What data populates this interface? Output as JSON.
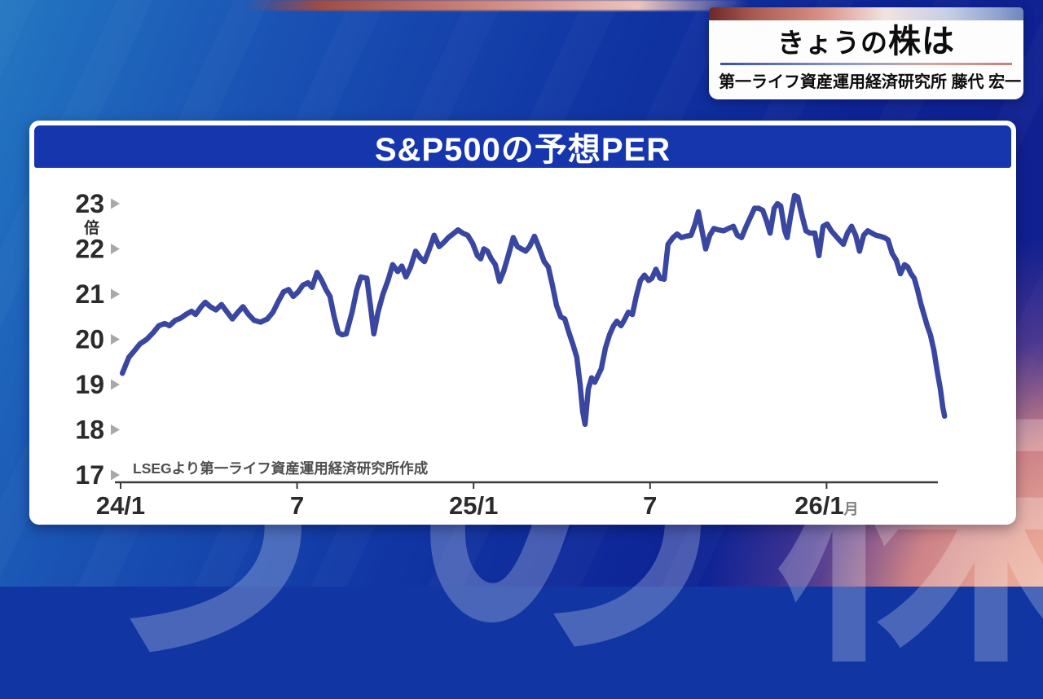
{
  "badge": {
    "title_leading": "きょうの",
    "title_emphasis": "株は",
    "subtitle": "第一ライフ資産運用経済研究所  藤代 宏一"
  },
  "card": {
    "title": "S&P500の予想PER"
  },
  "background": {
    "watermark": "うの株"
  },
  "colors": {
    "header_blue": "#1636ad",
    "line_blue": "#3a47a0",
    "axis": "#3a3a3a",
    "tick_triangle": "#a8a8a8",
    "label_text": "#2b2b2b",
    "source_text": "#4f4f4f",
    "bg_blue_light": "#2377c2",
    "bg_blue_dark": "#121d8c",
    "bg_salmon": "#e8a594"
  },
  "chart_data": {
    "type": "line",
    "title": "S&P500の予想PER",
    "unit_label": "倍",
    "source_note": "LSEGより第一ライフ資産運用経済研究所作成",
    "xlabel": "",
    "ylabel": "予想PER(倍)",
    "ylim": [
      17,
      23
    ],
    "grid": false,
    "legend": "none",
    "y_ticks": [
      23,
      22,
      21,
      20,
      19,
      18,
      17
    ],
    "x_unit": "months since 2024-01 (0 = 24/1)",
    "x_ticks": [
      {
        "m": 0,
        "label": "24/1"
      },
      {
        "m": 6,
        "label": "7"
      },
      {
        "m": 12,
        "label": "25/1"
      },
      {
        "m": 18,
        "label": "7"
      },
      {
        "m": 24,
        "label": "26/1",
        "suffix": "月"
      }
    ],
    "series": [
      {
        "name": "S&P500 予想PER",
        "color": "#3a47a0",
        "points": [
          [
            0.06,
            19.25
          ],
          [
            0.28,
            19.6
          ],
          [
            0.47,
            19.75
          ],
          [
            0.66,
            19.9
          ],
          [
            0.89,
            20.0
          ],
          [
            1.11,
            20.15
          ],
          [
            1.3,
            20.3
          ],
          [
            1.5,
            20.35
          ],
          [
            1.66,
            20.3
          ],
          [
            1.86,
            20.42
          ],
          [
            2.05,
            20.47
          ],
          [
            2.22,
            20.55
          ],
          [
            2.41,
            20.62
          ],
          [
            2.55,
            20.55
          ],
          [
            2.74,
            20.72
          ],
          [
            2.88,
            20.82
          ],
          [
            3.05,
            20.72
          ],
          [
            3.24,
            20.65
          ],
          [
            3.43,
            20.77
          ],
          [
            3.6,
            20.62
          ],
          [
            3.8,
            20.45
          ],
          [
            3.99,
            20.6
          ],
          [
            4.16,
            20.72
          ],
          [
            4.35,
            20.55
          ],
          [
            4.54,
            20.42
          ],
          [
            4.76,
            20.38
          ],
          [
            4.99,
            20.45
          ],
          [
            5.18,
            20.6
          ],
          [
            5.37,
            20.85
          ],
          [
            5.54,
            21.05
          ],
          [
            5.71,
            21.1
          ],
          [
            5.87,
            20.95
          ],
          [
            6.04,
            21.05
          ],
          [
            6.2,
            21.2
          ],
          [
            6.37,
            21.25
          ],
          [
            6.51,
            21.15
          ],
          [
            6.68,
            21.48
          ],
          [
            6.84,
            21.3
          ],
          [
            6.98,
            21.1
          ],
          [
            7.12,
            20.95
          ],
          [
            7.26,
            20.5
          ],
          [
            7.4,
            20.15
          ],
          [
            7.53,
            20.1
          ],
          [
            7.67,
            20.12
          ],
          [
            7.87,
            20.6
          ],
          [
            8.03,
            21.1
          ],
          [
            8.17,
            21.38
          ],
          [
            8.37,
            21.35
          ],
          [
            8.5,
            20.7
          ],
          [
            8.61,
            20.12
          ],
          [
            8.75,
            20.6
          ],
          [
            8.92,
            21.0
          ],
          [
            9.09,
            21.3
          ],
          [
            9.25,
            21.65
          ],
          [
            9.42,
            21.5
          ],
          [
            9.56,
            21.62
          ],
          [
            9.7,
            21.38
          ],
          [
            9.86,
            21.6
          ],
          [
            10.03,
            21.95
          ],
          [
            10.19,
            21.8
          ],
          [
            10.33,
            21.72
          ],
          [
            10.5,
            22.0
          ],
          [
            10.66,
            22.3
          ],
          [
            10.83,
            22.05
          ],
          [
            11.0,
            22.15
          ],
          [
            11.14,
            22.25
          ],
          [
            11.3,
            22.33
          ],
          [
            11.47,
            22.42
          ],
          [
            11.63,
            22.35
          ],
          [
            11.8,
            22.3
          ],
          [
            11.97,
            22.12
          ],
          [
            12.13,
            21.85
          ],
          [
            12.24,
            21.78
          ],
          [
            12.35,
            22.0
          ],
          [
            12.47,
            21.95
          ],
          [
            12.6,
            21.78
          ],
          [
            12.74,
            21.65
          ],
          [
            12.88,
            21.28
          ],
          [
            13.02,
            21.5
          ],
          [
            13.19,
            21.88
          ],
          [
            13.35,
            22.25
          ],
          [
            13.49,
            22.05
          ],
          [
            13.63,
            22.0
          ],
          [
            13.77,
            21.95
          ],
          [
            13.9,
            22.05
          ],
          [
            14.07,
            22.28
          ],
          [
            14.24,
            22.0
          ],
          [
            14.4,
            21.72
          ],
          [
            14.54,
            21.6
          ],
          [
            14.68,
            21.2
          ],
          [
            14.82,
            20.75
          ],
          [
            14.96,
            20.5
          ],
          [
            15.1,
            20.45
          ],
          [
            15.24,
            20.15
          ],
          [
            15.37,
            19.9
          ],
          [
            15.51,
            19.6
          ],
          [
            15.62,
            19.0
          ],
          [
            15.71,
            18.4
          ],
          [
            15.79,
            18.12
          ],
          [
            15.9,
            18.9
          ],
          [
            16.01,
            19.15
          ],
          [
            16.12,
            19.05
          ],
          [
            16.23,
            19.2
          ],
          [
            16.34,
            19.35
          ],
          [
            16.48,
            19.8
          ],
          [
            16.62,
            20.1
          ],
          [
            16.76,
            20.3
          ],
          [
            16.87,
            20.4
          ],
          [
            17.01,
            20.3
          ],
          [
            17.12,
            20.42
          ],
          [
            17.26,
            20.6
          ],
          [
            17.4,
            20.55
          ],
          [
            17.53,
            20.95
          ],
          [
            17.67,
            21.3
          ],
          [
            17.81,
            21.42
          ],
          [
            17.95,
            21.3
          ],
          [
            18.06,
            21.35
          ],
          [
            18.2,
            21.55
          ],
          [
            18.34,
            21.35
          ],
          [
            18.48,
            21.33
          ],
          [
            18.61,
            22.1
          ],
          [
            18.78,
            22.25
          ],
          [
            18.92,
            22.33
          ],
          [
            19.06,
            22.25
          ],
          [
            19.22,
            22.28
          ],
          [
            19.39,
            22.3
          ],
          [
            19.53,
            22.55
          ],
          [
            19.64,
            22.82
          ],
          [
            19.78,
            22.35
          ],
          [
            19.89,
            22.0
          ],
          [
            20.03,
            22.3
          ],
          [
            20.17,
            22.45
          ],
          [
            20.33,
            22.42
          ],
          [
            20.5,
            22.4
          ],
          [
            20.66,
            22.45
          ],
          [
            20.83,
            22.5
          ],
          [
            20.97,
            22.3
          ],
          [
            21.11,
            22.25
          ],
          [
            21.27,
            22.5
          ],
          [
            21.41,
            22.7
          ],
          [
            21.55,
            22.9
          ],
          [
            21.69,
            22.9
          ],
          [
            21.83,
            22.85
          ],
          [
            21.97,
            22.6
          ],
          [
            22.08,
            22.35
          ],
          [
            22.22,
            22.9
          ],
          [
            22.33,
            23.0
          ],
          [
            22.44,
            22.95
          ],
          [
            22.58,
            22.4
          ],
          [
            22.66,
            22.25
          ],
          [
            22.77,
            22.7
          ],
          [
            22.91,
            23.18
          ],
          [
            23.02,
            23.15
          ],
          [
            23.16,
            22.75
          ],
          [
            23.3,
            22.4
          ],
          [
            23.43,
            22.35
          ],
          [
            23.6,
            22.35
          ],
          [
            23.74,
            21.85
          ],
          [
            23.88,
            22.5
          ],
          [
            24.02,
            22.55
          ],
          [
            24.16,
            22.4
          ],
          [
            24.29,
            22.3
          ],
          [
            24.43,
            22.2
          ],
          [
            24.57,
            22.1
          ],
          [
            24.71,
            22.35
          ],
          [
            24.85,
            22.5
          ],
          [
            24.99,
            22.3
          ],
          [
            25.12,
            21.95
          ],
          [
            25.26,
            22.3
          ],
          [
            25.4,
            22.4
          ],
          [
            25.54,
            22.35
          ],
          [
            25.68,
            22.3
          ],
          [
            25.82,
            22.28
          ],
          [
            25.96,
            22.25
          ],
          [
            26.09,
            22.2
          ],
          [
            26.23,
            21.9
          ],
          [
            26.37,
            21.75
          ],
          [
            26.51,
            21.45
          ],
          [
            26.65,
            21.65
          ],
          [
            26.76,
            21.6
          ],
          [
            26.87,
            21.45
          ],
          [
            26.98,
            21.35
          ],
          [
            27.09,
            21.1
          ],
          [
            27.2,
            20.8
          ],
          [
            27.31,
            20.55
          ],
          [
            27.42,
            20.3
          ],
          [
            27.53,
            20.1
          ],
          [
            27.65,
            19.75
          ],
          [
            27.76,
            19.3
          ],
          [
            27.87,
            18.9
          ],
          [
            27.95,
            18.5
          ],
          [
            28.01,
            18.3
          ]
        ]
      }
    ]
  }
}
